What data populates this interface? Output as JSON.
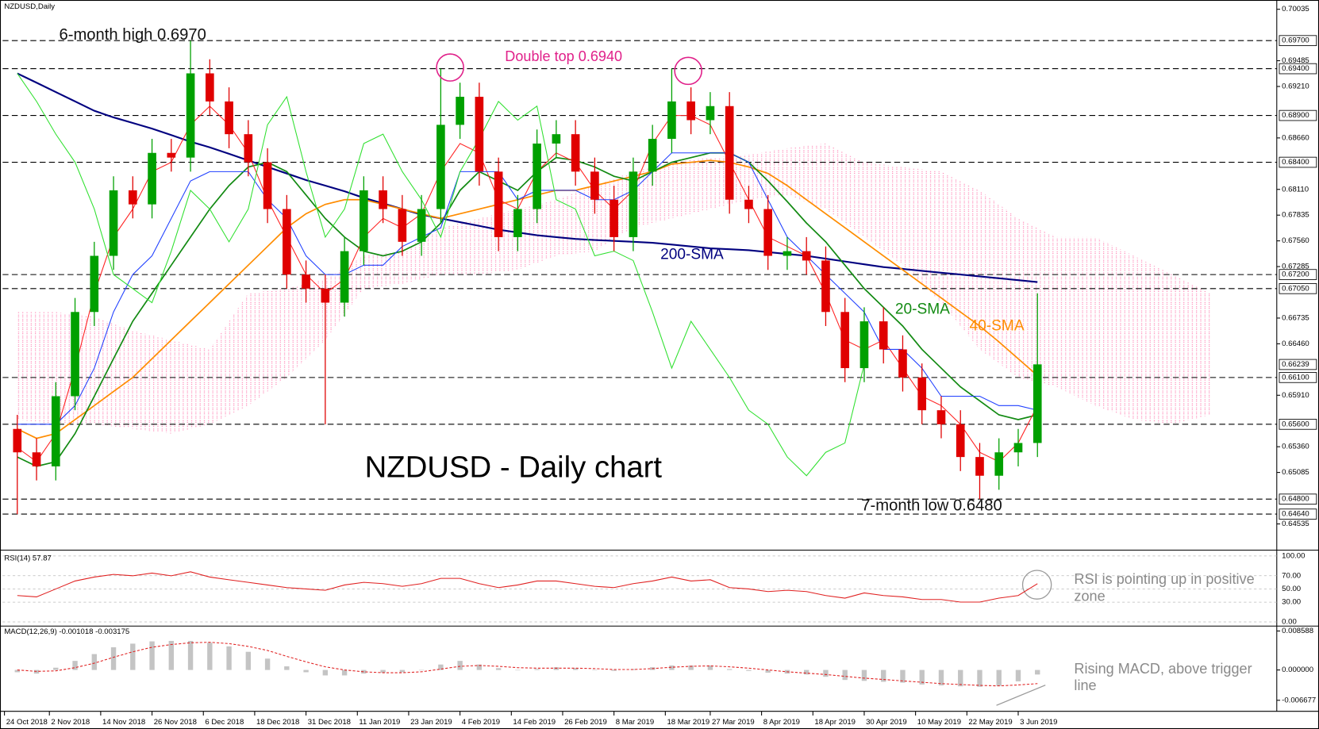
{
  "chart_data": {
    "type": "candlestick",
    "symbol": "NZDUSD,Daily",
    "title": "NZDUSD - Daily chart",
    "up_color": "#00a000",
    "down_color": "#e00000",
    "x": [
      2,
      5,
      8,
      11,
      14,
      17,
      20,
      23,
      26,
      29,
      32,
      35,
      38,
      41,
      44,
      47,
      50,
      53,
      56,
      59,
      62,
      65,
      68,
      71,
      74,
      77,
      80,
      83,
      86,
      89,
      92,
      95,
      98,
      101,
      104,
      107,
      110,
      113,
      116,
      119,
      122,
      125,
      128,
      131,
      134,
      137,
      140,
      143,
      146,
      149,
      152,
      155,
      158,
      161
    ],
    "open": [
      0.6555,
      0.653,
      0.6515,
      0.659,
      0.668,
      0.674,
      0.681,
      0.6795,
      0.685,
      0.6845,
      0.6935,
      0.6905,
      0.687,
      0.684,
      0.679,
      0.672,
      0.6705,
      0.669,
      0.6745,
      0.681,
      0.679,
      0.6755,
      0.679,
      0.688,
      0.691,
      0.683,
      0.676,
      0.679,
      0.686,
      0.687,
      0.683,
      0.68,
      0.676,
      0.683,
      0.6865,
      0.6905,
      0.6885,
      0.69,
      0.68,
      0.679,
      0.674,
      0.6745,
      0.6735,
      0.668,
      0.662,
      0.667,
      0.664,
      0.661,
      0.6575,
      0.656,
      0.6525,
      0.6505,
      0.653,
      0.654
    ],
    "high": [
      0.657,
      0.6545,
      0.6605,
      0.6695,
      0.6755,
      0.6825,
      0.6825,
      0.6865,
      0.6865,
      0.697,
      0.695,
      0.692,
      0.6885,
      0.6855,
      0.6805,
      0.6735,
      0.672,
      0.676,
      0.6825,
      0.6825,
      0.6805,
      0.6805,
      0.694,
      0.6925,
      0.6925,
      0.6845,
      0.6805,
      0.6875,
      0.6885,
      0.6885,
      0.6845,
      0.6815,
      0.6845,
      0.688,
      0.694,
      0.692,
      0.6915,
      0.6915,
      0.6815,
      0.6805,
      0.676,
      0.676,
      0.675,
      0.6695,
      0.6685,
      0.6685,
      0.6655,
      0.6625,
      0.659,
      0.6575,
      0.654,
      0.6545,
      0.6555,
      0.67
    ],
    "low": [
      0.6464,
      0.65,
      0.65,
      0.6575,
      0.6665,
      0.6725,
      0.678,
      0.678,
      0.683,
      0.683,
      0.689,
      0.6855,
      0.6825,
      0.6775,
      0.6705,
      0.669,
      0.656,
      0.6675,
      0.673,
      0.6775,
      0.674,
      0.674,
      0.6775,
      0.6865,
      0.6815,
      0.6745,
      0.6745,
      0.6775,
      0.6845,
      0.6815,
      0.6785,
      0.6745,
      0.6745,
      0.6815,
      0.685,
      0.687,
      0.687,
      0.6785,
      0.6775,
      0.6725,
      0.6725,
      0.672,
      0.6665,
      0.6605,
      0.6605,
      0.6625,
      0.6595,
      0.656,
      0.6545,
      0.651,
      0.648,
      0.649,
      0.6515,
      0.6525
    ],
    "close": [
      0.653,
      0.6515,
      0.659,
      0.668,
      0.674,
      0.681,
      0.6795,
      0.685,
      0.6845,
      0.6935,
      0.6905,
      0.687,
      0.684,
      0.679,
      0.672,
      0.6705,
      0.669,
      0.6745,
      0.681,
      0.679,
      0.6755,
      0.679,
      0.688,
      0.691,
      0.683,
      0.676,
      0.679,
      0.686,
      0.687,
      0.683,
      0.68,
      0.676,
      0.683,
      0.6865,
      0.6905,
      0.6885,
      0.69,
      0.68,
      0.679,
      0.674,
      0.6745,
      0.6735,
      0.668,
      0.662,
      0.667,
      0.664,
      0.661,
      0.6575,
      0.656,
      0.6525,
      0.6505,
      0.653,
      0.654,
      0.6624
    ],
    "xlim": [
      -0.3,
      198.3
    ],
    "xticks": [
      {
        "value": 0,
        "label": "24 Oct 2018"
      },
      {
        "value": 7,
        "label": "2 Nov 2018"
      },
      {
        "value": 15,
        "label": "14 Nov 2018"
      },
      {
        "value": 23,
        "label": "26 Nov 2018"
      },
      {
        "value": 31,
        "label": "6 Dec 2018"
      },
      {
        "value": 39,
        "label": "18 Dec 2018"
      },
      {
        "value": 47,
        "label": "31 Dec 2018"
      },
      {
        "value": 55,
        "label": "11 Jan 2019"
      },
      {
        "value": 63,
        "label": "23 Jan 2019"
      },
      {
        "value": 71,
        "label": "4 Feb 2019"
      },
      {
        "value": 79,
        "label": "14 Feb 2019"
      },
      {
        "value": 87,
        "label": "26 Feb 2019"
      },
      {
        "value": 95,
        "label": "8 Mar 2019"
      },
      {
        "value": 103,
        "label": "18 Mar 2019"
      },
      {
        "value": 110,
        "label": "27 Mar 2019"
      },
      {
        "value": 118,
        "label": "8 Apr 2019"
      },
      {
        "value": 126,
        "label": "18 Apr 2019"
      },
      {
        "value": 134,
        "label": "30 Apr 2019"
      },
      {
        "value": 142,
        "label": "10 May 2019"
      },
      {
        "value": 150,
        "label": "22 May 2019"
      },
      {
        "value": 158,
        "label": "3 Jun 2019"
      }
    ],
    "ylim": [
      0.64273,
      0.70107
    ],
    "yticks": [
      0.70035,
      0.69485,
      {
        "value": 0.6921,
        "label": "0.69210"
      },
      {
        "value": 0.6866,
        "label": "0.68660"
      },
      {
        "value": 0.6811,
        "label": "0.68110"
      },
      0.67835,
      {
        "value": 0.6756,
        "label": "0.67560"
      },
      0.67285,
      0.66735,
      {
        "value": 0.6646,
        "label": "0.66460"
      },
      {
        "value": 0.6591,
        "label": "0.65910"
      },
      {
        "value": 0.6536,
        "label": "0.65360"
      },
      0.65085,
      0.64535
    ],
    "levels": [
      {
        "value": 0.697,
        "label": "0.69700"
      },
      {
        "value": 0.694,
        "label": "0.69400"
      },
      {
        "value": 0.689,
        "label": "0.68900"
      },
      {
        "value": 0.684,
        "label": "0.68400"
      },
      {
        "value": 0.672,
        "label": "0.67200"
      },
      {
        "value": 0.6705,
        "label": "0.67050"
      },
      {
        "value": 0.661,
        "label": "0.66100"
      },
      {
        "value": 0.656,
        "label": "0.65600"
      },
      {
        "value": 0.648,
        "label": "0.64800"
      },
      {
        "value": 0.6464,
        "label": "0.64640"
      }
    ],
    "last_price": 0.66239,
    "series": [
      {
        "name": "200-SMA",
        "color": "#00007f",
        "width": 2,
        "values": [
          0.6935,
          0.6925,
          0.6915,
          0.6905,
          0.6895,
          0.6888,
          0.6882,
          0.6876,
          0.6869,
          0.6862,
          0.6856,
          0.6849,
          0.6842,
          0.6835,
          0.6828,
          0.6821,
          0.6815,
          0.6809,
          0.6802,
          0.6796,
          0.679,
          0.6784,
          0.678,
          0.6776,
          0.6772,
          0.6768,
          0.6765,
          0.6762,
          0.676,
          0.6758,
          0.6757,
          0.6756,
          0.6755,
          0.6754,
          0.6752,
          0.675,
          0.6748,
          0.6747,
          0.6746,
          0.6744,
          0.6742,
          0.674,
          0.6737,
          0.6734,
          0.6731,
          0.6728,
          0.6726,
          0.6724,
          0.6722,
          0.672,
          0.6718,
          0.6716,
          0.6714,
          0.6712
        ]
      },
      {
        "name": "40-SMA",
        "color": "#ff8c00",
        "width": 1.6,
        "values": [
          0.6555,
          0.6545,
          0.655,
          0.6565,
          0.658,
          0.6595,
          0.661,
          0.663,
          0.665,
          0.667,
          0.669,
          0.671,
          0.673,
          0.675,
          0.677,
          0.6785,
          0.6795,
          0.68,
          0.68,
          0.6795,
          0.679,
          0.6785,
          0.678,
          0.6785,
          0.679,
          0.6795,
          0.68,
          0.6805,
          0.681,
          0.681,
          0.6815,
          0.682,
          0.6825,
          0.683,
          0.6838,
          0.684,
          0.6842,
          0.684,
          0.6835,
          0.6828,
          0.6815,
          0.68,
          0.6785,
          0.677,
          0.6755,
          0.674,
          0.6725,
          0.671,
          0.6695,
          0.668,
          0.6665,
          0.6648,
          0.663,
          0.6612
        ]
      },
      {
        "name": "20-SMA",
        "color": "#128a12",
        "width": 1.6,
        "values": [
          0.6525,
          0.6515,
          0.652,
          0.655,
          0.659,
          0.663,
          0.667,
          0.67,
          0.673,
          0.676,
          0.679,
          0.6815,
          0.6835,
          0.684,
          0.683,
          0.6805,
          0.678,
          0.676,
          0.6745,
          0.674,
          0.6745,
          0.6755,
          0.6775,
          0.681,
          0.683,
          0.682,
          0.681,
          0.683,
          0.6845,
          0.6842,
          0.6835,
          0.6825,
          0.682,
          0.683,
          0.684,
          0.6845,
          0.685,
          0.685,
          0.684,
          0.682,
          0.6798,
          0.6775,
          0.6755,
          0.673,
          0.6705,
          0.6685,
          0.6665,
          0.664,
          0.662,
          0.66,
          0.6585,
          0.657,
          0.6565,
          0.657
        ]
      },
      {
        "color": "#ff2020",
        "width": 1,
        "values": [
          0.6535,
          0.652,
          0.655,
          0.662,
          0.67,
          0.676,
          0.679,
          0.683,
          0.684,
          0.688,
          0.69,
          0.688,
          0.685,
          0.68,
          0.676,
          0.672,
          0.67,
          0.6715,
          0.676,
          0.678,
          0.677,
          0.6785,
          0.683,
          0.686,
          0.685,
          0.68,
          0.679,
          0.683,
          0.685,
          0.684,
          0.681,
          0.679,
          0.681,
          0.686,
          0.689,
          0.689,
          0.688,
          0.684,
          0.68,
          0.676,
          0.675,
          0.674,
          0.67,
          0.665,
          0.664,
          0.665,
          0.662,
          0.659,
          0.658,
          0.656,
          0.653,
          0.652,
          0.654,
          0.658
        ]
      },
      {
        "color": "#2040ff",
        "width": 1,
        "values": [
          0.656,
          0.656,
          0.656,
          0.658,
          0.662,
          0.668,
          0.672,
          0.674,
          0.678,
          0.682,
          0.683,
          0.683,
          0.683,
          0.68,
          0.678,
          0.674,
          0.672,
          0.672,
          0.673,
          0.673,
          0.675,
          0.676,
          0.677,
          0.683,
          0.683,
          0.683,
          0.68,
          0.681,
          0.681,
          0.681,
          0.68,
          0.68,
          0.681,
          0.683,
          0.685,
          0.685,
          0.685,
          0.685,
          0.684,
          0.68,
          0.676,
          0.674,
          0.672,
          0.67,
          0.668,
          0.664,
          0.664,
          0.662,
          0.659,
          0.659,
          0.659,
          0.658,
          0.658,
          0.6575
        ]
      },
      {
        "color": "#30e030",
        "width": 1,
        "x": [
          2,
          5,
          8,
          11,
          14,
          17,
          20,
          23,
          26,
          29,
          32,
          35,
          38,
          41,
          44,
          47,
          50,
          53,
          56,
          59,
          62,
          65,
          68,
          71,
          74,
          77,
          80,
          83,
          86,
          89,
          92,
          95,
          98,
          101,
          104,
          107,
          110,
          113,
          116,
          119,
          122,
          125,
          128,
          131,
          134
        ],
        "values": [
          0.6935,
          0.6905,
          0.687,
          0.684,
          0.679,
          0.672,
          0.6705,
          0.669,
          0.6745,
          0.681,
          0.679,
          0.6755,
          0.679,
          0.688,
          0.691,
          0.683,
          0.676,
          0.679,
          0.686,
          0.687,
          0.683,
          0.68,
          0.676,
          0.683,
          0.6865,
          0.6905,
          0.6885,
          0.69,
          0.68,
          0.679,
          0.674,
          0.6745,
          0.6735,
          0.668,
          0.662,
          0.667,
          0.664,
          0.661,
          0.6575,
          0.656,
          0.6525,
          0.6505,
          0.653,
          0.654,
          0.6624
        ]
      }
    ],
    "cloud": {
      "color": "#ff6fa8",
      "x": [
        2,
        8,
        14,
        20,
        26,
        32,
        38,
        44,
        50,
        56,
        62,
        68,
        74,
        80,
        86,
        92,
        98,
        104,
        110,
        116,
        122,
        128,
        134,
        140,
        146,
        152,
        158,
        164,
        170,
        176,
        182,
        188
      ],
      "upper": [
        0.668,
        0.668,
        0.6675,
        0.666,
        0.665,
        0.664,
        0.67,
        0.6705,
        0.6715,
        0.674,
        0.6745,
        0.677,
        0.678,
        0.679,
        0.68,
        0.6815,
        0.683,
        0.684,
        0.6845,
        0.6848,
        0.6855,
        0.686,
        0.684,
        0.6835,
        0.683,
        0.681,
        0.678,
        0.676,
        0.676,
        0.674,
        0.672,
        0.67
      ],
      "lower": [
        0.6565,
        0.656,
        0.656,
        0.6555,
        0.655,
        0.656,
        0.658,
        0.661,
        0.665,
        0.6705,
        0.671,
        0.672,
        0.672,
        0.6725,
        0.674,
        0.6745,
        0.677,
        0.678,
        0.679,
        0.68,
        0.6805,
        0.679,
        0.676,
        0.673,
        0.669,
        0.664,
        0.661,
        0.66,
        0.658,
        0.6565,
        0.656,
        0.657
      ]
    },
    "annotations": [
      {
        "text": "6-month high 0.6970",
        "color": "#111111"
      },
      {
        "text": "Double top 0.6940",
        "color": "#e0218a"
      },
      {
        "text": "7-month low 0.6480",
        "color": "#111111"
      }
    ],
    "rsi": {
      "title": "RSI(14) 57.87",
      "color": "#e02020",
      "ylim": [
        -5,
        105
      ],
      "yticks": [
        {
          "value": 100,
          "label": "100.00"
        },
        {
          "value": 70,
          "label": "70.00"
        },
        {
          "value": 50,
          "label": "50.00"
        },
        {
          "value": 30,
          "label": "30.00"
        },
        {
          "value": 0,
          "label": "0.00"
        }
      ],
      "values": [
        40,
        38,
        50,
        62,
        68,
        72,
        70,
        74,
        70,
        76,
        68,
        64,
        60,
        56,
        52,
        50,
        48,
        56,
        60,
        58,
        54,
        58,
        66,
        66,
        58,
        52,
        56,
        62,
        62,
        58,
        54,
        52,
        58,
        62,
        68,
        62,
        64,
        52,
        50,
        46,
        48,
        46,
        40,
        36,
        44,
        40,
        38,
        34,
        34,
        30,
        30,
        36,
        40,
        57.87
      ],
      "note": "RSI is pointing up in positive zone"
    },
    "macd": {
      "title": "MACD(12,26,9) -0.001018 -0.003175",
      "hist_color": "#c4c4c4",
      "signal_color": "#e02020",
      "ylim": [
        -0.0091,
        0.0093
      ],
      "yticks": [
        0.008588,
        {
          "value": 0,
          "label": "0.000000"
        },
        -0.006677
      ],
      "histogram": [
        -0.0005,
        -0.0008,
        0.0005,
        0.002,
        0.0035,
        0.005,
        0.0058,
        0.0063,
        0.0064,
        0.0064,
        0.006,
        0.0052,
        0.004,
        0.0025,
        0.0008,
        -0.0005,
        -0.0012,
        -0.0012,
        -0.0008,
        -0.0006,
        -0.0005,
        0,
        0.0012,
        0.002,
        0.0012,
        0.0004,
        0,
        0.0002,
        0.0006,
        0.0004,
        0,
        -0.0002,
        0.0002,
        0.0006,
        0.001,
        0.001,
        0.001,
        0.0002,
        -0.0002,
        -0.0006,
        -0.0008,
        -0.001,
        -0.0015,
        -0.0022,
        -0.0024,
        -0.0026,
        -0.0028,
        -0.0032,
        -0.0034,
        -0.0036,
        -0.0037,
        -0.0035,
        -0.0025,
        -0.001
      ],
      "signal": [
        0,
        -0.0003,
        -0.0002,
        0.0005,
        0.0015,
        0.0028,
        0.004,
        0.005,
        0.0056,
        0.006,
        0.0061,
        0.0058,
        0.0052,
        0.0043,
        0.003,
        0.0018,
        0.0007,
        0,
        -0.0004,
        -0.0006,
        -0.0006,
        -0.0004,
        0.0002,
        0.0008,
        0.001,
        0.0008,
        0.0005,
        0.0004,
        0.0004,
        0.0004,
        0.0003,
        0.0001,
        0.0001,
        0.0003,
        0.0006,
        0.0008,
        0.0009,
        0.0007,
        0.0004,
        0,
        -0.0004,
        -0.0007,
        -0.001,
        -0.0014,
        -0.0018,
        -0.0021,
        -0.0024,
        -0.0027,
        -0.003,
        -0.0032,
        -0.0034,
        -0.0035,
        -0.0033,
        -0.003
      ],
      "note": "Rising MACD, above trigger line"
    }
  }
}
